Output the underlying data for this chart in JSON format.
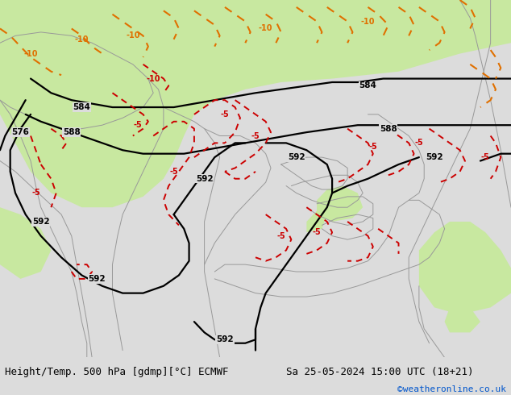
{
  "title_left": "Height/Temp. 500 hPa [gdmp][°C] ECMWF",
  "title_right": "Sa 25-05-2024 15:00 UTC (18+21)",
  "watermark": "©weatheronline.co.uk",
  "bg_color": "#dcdcdc",
  "map_bg_color": "#dcdcdc",
  "green_area_color": "#c8e8a0",
  "fig_width": 6.34,
  "fig_height": 4.9,
  "dpi": 100,
  "title_fontsize": 9.0,
  "watermark_fontsize": 8,
  "watermark_color": "#0055cc"
}
